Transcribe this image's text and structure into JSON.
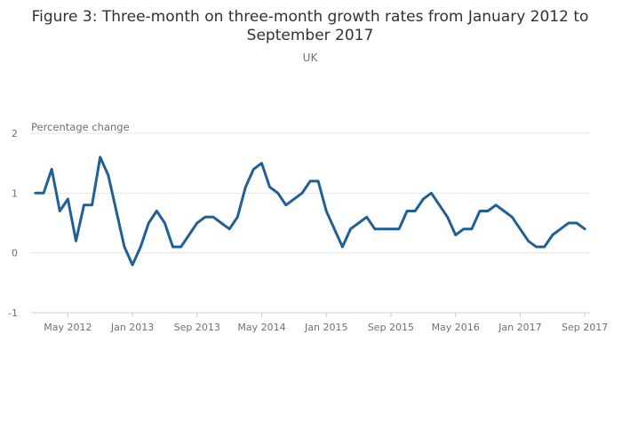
{
  "chart_data": {
    "type": "line",
    "title_line1": "Figure 3: Three-month on three-month growth rates from January 2012 to",
    "title_line2": "September 2017",
    "subtitle": "UK",
    "ylabel": "Percentage change",
    "xlabel": "",
    "ylim": [
      -1,
      2
    ],
    "yticks": [
      2,
      1,
      0,
      -1
    ],
    "xtick_labels": [
      "May 2012",
      "Jan 2013",
      "Sep 2013",
      "May 2014",
      "Jan 2015",
      "Sep 2015",
      "May 2016",
      "Jan 2017",
      "Sep 2017"
    ],
    "xtick_months": [
      "2012-05",
      "2013-01",
      "2013-09",
      "2014-05",
      "2015-01",
      "2015-09",
      "2016-05",
      "2017-01",
      "2017-09"
    ],
    "grid": true,
    "legend": "none",
    "series": [
      {
        "color": "#206095",
        "x": [
          "2012-01",
          "2012-02",
          "2012-03",
          "2012-04",
          "2012-05",
          "2012-06",
          "2012-07",
          "2012-08",
          "2012-09",
          "2012-10",
          "2012-11",
          "2012-12",
          "2013-01",
          "2013-02",
          "2013-03",
          "2013-04",
          "2013-05",
          "2013-06",
          "2013-07",
          "2013-08",
          "2013-09",
          "2013-10",
          "2013-11",
          "2013-12",
          "2014-01",
          "2014-02",
          "2014-03",
          "2014-04",
          "2014-05",
          "2014-06",
          "2014-07",
          "2014-08",
          "2014-09",
          "2014-10",
          "2014-11",
          "2014-12",
          "2015-01",
          "2015-02",
          "2015-03",
          "2015-04",
          "2015-05",
          "2015-06",
          "2015-07",
          "2015-08",
          "2015-09",
          "2015-10",
          "2015-11",
          "2015-12",
          "2016-01",
          "2016-02",
          "2016-03",
          "2016-04",
          "2016-05",
          "2016-06",
          "2016-07",
          "2016-08",
          "2016-09",
          "2016-10",
          "2016-11",
          "2016-12",
          "2017-01",
          "2017-02",
          "2017-03",
          "2017-04",
          "2017-05",
          "2017-06",
          "2017-07",
          "2017-08",
          "2017-09"
        ],
        "values": [
          1.0,
          1.0,
          1.4,
          0.7,
          0.9,
          0.2,
          0.8,
          0.8,
          1.6,
          1.3,
          0.7,
          0.1,
          -0.2,
          0.1,
          0.5,
          0.7,
          0.5,
          0.1,
          0.1,
          0.3,
          0.5,
          0.6,
          0.6,
          0.5,
          0.4,
          0.6,
          1.1,
          1.4,
          1.5,
          1.1,
          1.0,
          0.8,
          0.9,
          1.0,
          1.2,
          1.2,
          0.7,
          0.4,
          0.1,
          0.4,
          0.5,
          0.6,
          0.4,
          0.4,
          0.4,
          0.4,
          0.7,
          0.7,
          0.9,
          1.0,
          0.8,
          0.6,
          0.3,
          0.4,
          0.4,
          0.7,
          0.7,
          0.8,
          0.7,
          0.6,
          0.4,
          0.2,
          0.1,
          0.1,
          0.3,
          0.4,
          0.5,
          0.5,
          0.4
        ]
      }
    ]
  }
}
